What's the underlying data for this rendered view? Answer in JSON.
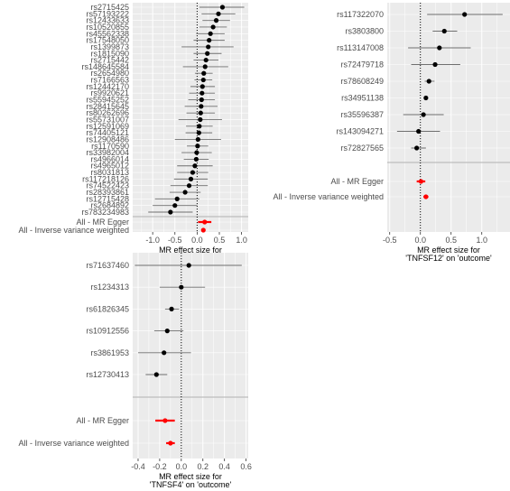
{
  "colors": {
    "panel_bg": "#ebebeb",
    "grid": "#ffffff",
    "point": "#000000",
    "ci": "#6f6f6f",
    "summary": "#ff0000",
    "separator": "#b0b0b0",
    "zero_line": "#000000"
  },
  "chart_data": [
    {
      "type": "scatter",
      "subtype": "forest",
      "exposure": "IGF1R",
      "xlabel_line1": "MR effect size for",
      "xlabel_line2": "'IGF1R' on 'outcome'",
      "xlim": [
        -1.45,
        1.15
      ],
      "xticks": [
        -1.0,
        -0.5,
        0.0,
        0.5,
        1.0
      ],
      "xtick_labels": [
        "-1.0",
        "-0.5",
        "0.0",
        "0.5",
        "1.0"
      ],
      "zero_line": 0,
      "grid": true,
      "snps": [
        {
          "label": "rs2715425",
          "b": 0.57,
          "lo": 0.05,
          "hi": 1.06
        },
        {
          "label": "rs57193222",
          "b": 0.48,
          "lo": 0.1,
          "hi": 0.86
        },
        {
          "label": "rs12433633",
          "b": 0.43,
          "lo": 0.12,
          "hi": 0.74
        },
        {
          "label": "rs10520855",
          "b": 0.36,
          "lo": 0.05,
          "hi": 0.67
        },
        {
          "label": "rs45562338",
          "b": 0.3,
          "lo": -0.02,
          "hi": 0.62
        },
        {
          "label": "rs17548050",
          "b": 0.27,
          "lo": -0.08,
          "hi": 0.62
        },
        {
          "label": "rs1399873",
          "b": 0.25,
          "lo": -0.35,
          "hi": 0.82
        },
        {
          "label": "rs1815090",
          "b": 0.23,
          "lo": -0.08,
          "hi": 0.55
        },
        {
          "label": "rs2715442",
          "b": 0.2,
          "lo": -0.08,
          "hi": 0.48
        },
        {
          "label": "rs148645584",
          "b": 0.18,
          "lo": -0.32,
          "hi": 0.7
        },
        {
          "label": "rs2654980",
          "b": 0.15,
          "lo": -0.05,
          "hi": 0.35
        },
        {
          "label": "rs7166563",
          "b": 0.14,
          "lo": -0.06,
          "hi": 0.34
        },
        {
          "label": "rs12442170",
          "b": 0.12,
          "lo": -0.15,
          "hi": 0.4
        },
        {
          "label": "rs9920621",
          "b": 0.11,
          "lo": -0.18,
          "hi": 0.4
        },
        {
          "label": "rs55945252",
          "b": 0.1,
          "lo": -0.2,
          "hi": 0.4
        },
        {
          "label": "rs28415645",
          "b": 0.09,
          "lo": -0.28,
          "hi": 0.46
        },
        {
          "label": "rs80262696",
          "b": 0.08,
          "lo": -0.24,
          "hi": 0.4
        },
        {
          "label": "rs55731007",
          "b": 0.07,
          "lo": -0.42,
          "hi": 0.56
        },
        {
          "label": "rs12591069",
          "b": 0.05,
          "lo": -0.25,
          "hi": 0.35
        },
        {
          "label": "rs74405121",
          "b": 0.04,
          "lo": -0.26,
          "hi": 0.34
        },
        {
          "label": "rs12908486",
          "b": 0.02,
          "lo": -0.5,
          "hi": 0.54
        },
        {
          "label": "rs1170590",
          "b": 0.01,
          "lo": -0.23,
          "hi": 0.25
        },
        {
          "label": "rs33982004",
          "b": -0.01,
          "lo": -0.35,
          "hi": 0.33
        },
        {
          "label": "rs4966014",
          "b": -0.02,
          "lo": -0.3,
          "hi": 0.26
        },
        {
          "label": "rs4965012",
          "b": -0.05,
          "lo": -0.45,
          "hi": 0.35
        },
        {
          "label": "rs8031813",
          "b": -0.1,
          "lo": -0.45,
          "hi": 0.25
        },
        {
          "label": "rs117218126",
          "b": -0.14,
          "lo": -0.52,
          "hi": 0.24
        },
        {
          "label": "rs74522423",
          "b": -0.18,
          "lo": -0.6,
          "hi": 0.24
        },
        {
          "label": "rs28393861",
          "b": -0.27,
          "lo": -0.62,
          "hi": 0.08
        },
        {
          "label": "rs12715428",
          "b": -0.45,
          "lo": -0.95,
          "hi": 0.05
        },
        {
          "label": "rs2684892",
          "b": -0.5,
          "lo": -1.0,
          "hi": 0.0
        },
        {
          "label": "rs783234983",
          "b": -0.6,
          "lo": -1.1,
          "hi": -0.1
        }
      ],
      "summaries": [
        {
          "label": "All - MR Egger",
          "b": 0.17,
          "lo": 0.02,
          "hi": 0.32
        },
        {
          "label": "All - Inverse variance weighted",
          "b": 0.14,
          "lo": 0.1,
          "hi": 0.18
        }
      ]
    },
    {
      "type": "scatter",
      "subtype": "forest",
      "exposure": "TNFSF12",
      "xlabel_line1": "MR effect size for",
      "xlabel_line2": "'TNFSF12' on 'outcome'",
      "xlim": [
        -0.54,
        1.46
      ],
      "xticks": [
        -0.5,
        0.0,
        0.5,
        1.0
      ],
      "xtick_labels": [
        "-0.5",
        "0.0",
        "0.5",
        "1.0"
      ],
      "zero_line": 0,
      "grid": true,
      "snps": [
        {
          "label": "rs117322070",
          "b": 0.72,
          "lo": 0.11,
          "hi": 1.34
        },
        {
          "label": "rs3803800",
          "b": 0.39,
          "lo": 0.2,
          "hi": 0.6
        },
        {
          "label": "rs113147008",
          "b": 0.31,
          "lo": -0.2,
          "hi": 0.82
        },
        {
          "label": "rs72479718",
          "b": 0.24,
          "lo": -0.15,
          "hi": 0.65
        },
        {
          "label": "rs78608249",
          "b": 0.14,
          "lo": 0.07,
          "hi": 0.23
        },
        {
          "label": "rs34951138",
          "b": 0.09,
          "lo": 0.06,
          "hi": 0.12
        },
        {
          "label": "rs35596387",
          "b": 0.05,
          "lo": -0.28,
          "hi": 0.38
        },
        {
          "label": "rs143094271",
          "b": -0.03,
          "lo": -0.38,
          "hi": 0.32
        },
        {
          "label": "rs72827565",
          "b": -0.06,
          "lo": -0.15,
          "hi": 0.09
        }
      ],
      "summaries": [
        {
          "label": "All - MR Egger",
          "b": 0.01,
          "lo": -0.06,
          "hi": 0.08
        },
        {
          "label": "All - Inverse variance weighted",
          "b": 0.09,
          "lo": 0.05,
          "hi": 0.13
        }
      ]
    },
    {
      "type": "scatter",
      "subtype": "forest",
      "exposure": "TNFSF4",
      "xlabel_line1": "MR effect size for",
      "xlabel_line2": "'TNFSF4' on 'outcome'",
      "xlim": [
        -0.45,
        0.62
      ],
      "xticks": [
        -0.4,
        -0.2,
        0.0,
        0.2,
        0.4,
        0.6
      ],
      "xtick_labels": [
        "-0.4",
        "-0.2",
        "0.0",
        "0.2",
        "0.4",
        "0.6"
      ],
      "zero_line": 0,
      "grid": true,
      "snps": [
        {
          "label": "rs71637460",
          "b": 0.07,
          "lo": -0.43,
          "hi": 0.56
        },
        {
          "label": "rs1234313",
          "b": 0.0,
          "lo": -0.2,
          "hi": 0.22
        },
        {
          "label": "rs61826345",
          "b": -0.09,
          "lo": -0.15,
          "hi": -0.02
        },
        {
          "label": "rs10912556",
          "b": -0.13,
          "lo": -0.25,
          "hi": 0.02
        },
        {
          "label": "rs3861953",
          "b": -0.16,
          "lo": -0.4,
          "hi": 0.09
        },
        {
          "label": "rs12730413",
          "b": -0.23,
          "lo": -0.33,
          "hi": -0.13
        }
      ],
      "summaries": [
        {
          "label": "All - MR Egger",
          "b": -0.15,
          "lo": -0.24,
          "hi": -0.06
        },
        {
          "label": "All - Inverse variance weighted",
          "b": -0.1,
          "lo": -0.14,
          "hi": -0.06
        }
      ]
    }
  ]
}
